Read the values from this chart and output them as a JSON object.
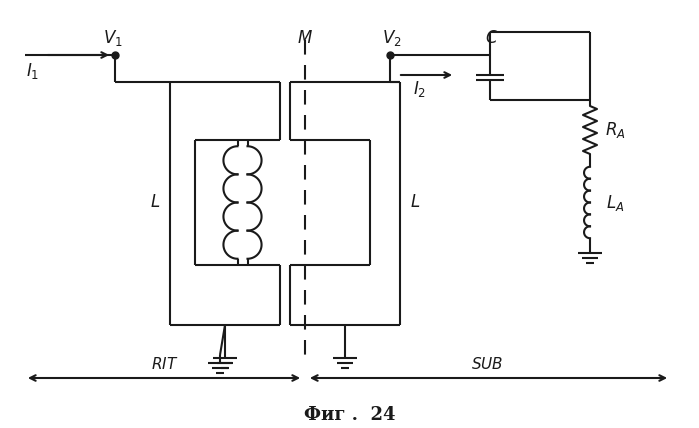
{
  "bg_color": "#ffffff",
  "line_color": "#1a1a1a",
  "title": "Фиг .  24",
  "label_V1": "$V_1$",
  "label_I1": "$I_1$",
  "label_M": "$M$",
  "label_V2": "$V_2$",
  "label_I2": "$I_2$",
  "label_C": "$C$",
  "label_L1": "$L$",
  "label_L2": "$L$",
  "label_RA": "$R_A$",
  "label_LA": "$L_A$",
  "label_RIT": "$RIT$",
  "label_SUB": "$SUB$",
  "fig_width": 6.99,
  "fig_height": 4.28,
  "dpi": 100
}
